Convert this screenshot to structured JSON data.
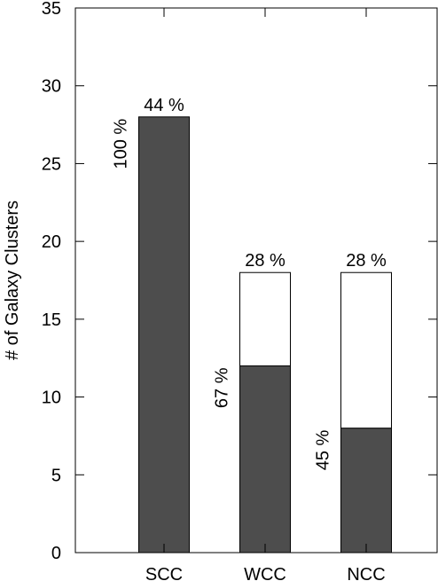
{
  "chart_data": {
    "type": "bar",
    "title": "",
    "xlabel": "",
    "ylabel": "# of Galaxy Clusters",
    "ylim": [
      0,
      35
    ],
    "yticks": [
      0,
      5,
      10,
      15,
      20,
      25,
      30,
      35
    ],
    "categories": [
      "SCC",
      "WCC",
      "NCC"
    ],
    "series": [
      {
        "values": [
          28,
          12,
          8
        ],
        "color": "#4d4d4d"
      },
      {
        "values": [
          0,
          6,
          10
        ],
        "color": "#ffffff"
      }
    ],
    "totals": [
      28,
      18,
      18
    ],
    "top_labels": [
      "44 %",
      "28 %",
      "28 %"
    ],
    "side_labels": [
      "100 %",
      "67 %",
      "45 %"
    ],
    "grid": false,
    "legend": "none"
  }
}
